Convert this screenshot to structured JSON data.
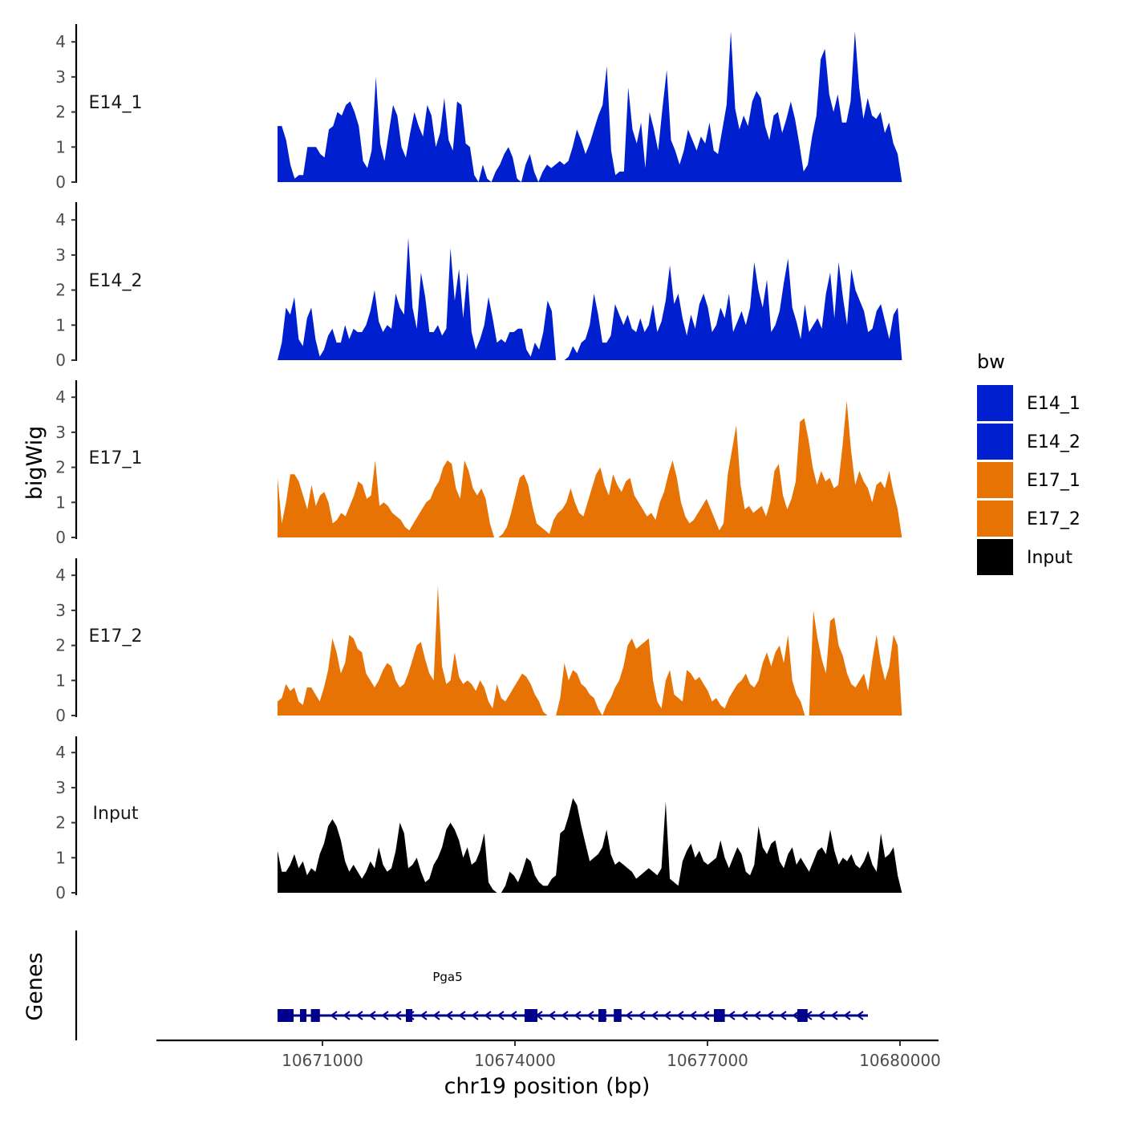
{
  "chart_data": {
    "type": "area",
    "ylabel": "bigWig",
    "xlabel": "chr19 position (bp)",
    "genes_label": "Genes",
    "x_range": [
      10668500,
      10680300
    ],
    "x_ticks": [
      10671000,
      10674000,
      10677000,
      10680000
    ],
    "x_tick_labels": [
      "10671000",
      "10674000",
      "10677000",
      "10680000"
    ],
    "y_range": [
      0,
      4.4
    ],
    "y_ticks": [
      0,
      1,
      2,
      3,
      4
    ],
    "y_tick_labels": [
      "0",
      "1",
      "2",
      "3",
      "4"
    ],
    "legend": {
      "title": "bw",
      "items": [
        {
          "label": "E14_1",
          "color": "#0020d0"
        },
        {
          "label": "E14_2",
          "color": "#0020d0"
        },
        {
          "label": "E17_1",
          "color": "#e87305"
        },
        {
          "label": "E17_2",
          "color": "#e87305"
        },
        {
          "label": "Input",
          "color": "#000000"
        }
      ]
    },
    "series": [
      {
        "name": "E14_1",
        "color": "#0020d0",
        "x_start": 10670300,
        "x_end": 10680030,
        "values": [
          1.6,
          1.6,
          1.2,
          0.5,
          0.1,
          0.2,
          0.2,
          1.0,
          1.0,
          1.0,
          0.8,
          0.7,
          1.5,
          1.6,
          2.0,
          1.9,
          2.2,
          2.3,
          2.0,
          1.6,
          0.6,
          0.4,
          0.9,
          3.0,
          1.1,
          0.6,
          1.4,
          2.2,
          1.9,
          1.0,
          0.7,
          1.4,
          2.0,
          1.6,
          1.3,
          2.2,
          1.9,
          1.0,
          1.4,
          2.4,
          1.2,
          0.9,
          2.3,
          2.2,
          1.1,
          1.0,
          0.2,
          0.0,
          0.5,
          0.1,
          0.0,
          0.3,
          0.5,
          0.8,
          1.0,
          0.7,
          0.1,
          0.0,
          0.5,
          0.8,
          0.3,
          0.0,
          0.3,
          0.5,
          0.4,
          0.5,
          0.6,
          0.5,
          0.6,
          1.0,
          1.5,
          1.2,
          0.8,
          1.1,
          1.5,
          1.9,
          2.2,
          3.3,
          0.9,
          0.2,
          0.3,
          0.3,
          2.7,
          1.5,
          1.1,
          1.7,
          0.4,
          2.0,
          1.5,
          0.9,
          2.1,
          3.2,
          1.2,
          0.9,
          0.5,
          0.9,
          1.5,
          1.2,
          0.9,
          1.3,
          1.1,
          1.7,
          0.9,
          0.8,
          1.5,
          2.2,
          4.3,
          2.1,
          1.5,
          1.9,
          1.6,
          2.3,
          2.6,
          2.4,
          1.6,
          1.2,
          1.9,
          2.0,
          1.4,
          1.8,
          2.3,
          1.8,
          1.1,
          0.3,
          0.5,
          1.3,
          1.9,
          3.5,
          3.8,
          2.5,
          2.0,
          2.5,
          1.7,
          1.7,
          2.3,
          4.3,
          2.7,
          1.8,
          2.4,
          1.9,
          1.8,
          2.0,
          1.4,
          1.7,
          1.1,
          0.8,
          0.0
        ]
      },
      {
        "name": "E14_2",
        "color": "#0020d0",
        "x_start": 10670300,
        "x_end": 10680030,
        "values": [
          0.0,
          0.5,
          1.5,
          1.3,
          1.8,
          0.6,
          0.4,
          1.2,
          1.5,
          0.6,
          0.1,
          0.3,
          0.7,
          0.9,
          0.5,
          0.5,
          1.0,
          0.6,
          0.9,
          0.8,
          0.8,
          1.0,
          1.4,
          2.0,
          1.1,
          0.8,
          1.0,
          0.9,
          1.9,
          1.5,
          1.3,
          3.5,
          1.5,
          0.9,
          2.5,
          1.8,
          0.8,
          0.8,
          1.0,
          0.7,
          0.9,
          3.2,
          1.7,
          2.6,
          1.2,
          2.5,
          0.8,
          0.3,
          0.6,
          1.0,
          1.8,
          1.2,
          0.5,
          0.6,
          0.5,
          0.8,
          0.8,
          0.9,
          0.9,
          0.3,
          0.1,
          0.5,
          0.3,
          0.8,
          1.7,
          1.4,
          0.0,
          0.0,
          0.0,
          0.1,
          0.4,
          0.2,
          0.5,
          0.6,
          1.0,
          1.9,
          1.3,
          0.5,
          0.5,
          0.7,
          1.6,
          1.3,
          1.0,
          1.3,
          0.9,
          0.8,
          1.2,
          0.8,
          1.0,
          1.6,
          0.8,
          1.1,
          1.7,
          2.7,
          1.6,
          1.9,
          1.2,
          0.7,
          1.3,
          0.9,
          1.6,
          1.9,
          1.5,
          0.8,
          1.0,
          1.5,
          1.2,
          1.9,
          0.8,
          1.1,
          1.4,
          1.0,
          1.5,
          2.8,
          2.0,
          1.5,
          2.3,
          0.8,
          1.0,
          1.4,
          2.2,
          2.9,
          1.5,
          1.1,
          0.6,
          1.6,
          0.8,
          1.0,
          1.2,
          0.9,
          1.9,
          2.5,
          1.2,
          2.8,
          1.8,
          1.0,
          2.6,
          2.0,
          1.7,
          1.4,
          0.8,
          0.9,
          1.4,
          1.6,
          1.1,
          0.6,
          1.3,
          1.5,
          0.0
        ]
      },
      {
        "name": "E17_1",
        "color": "#e87305",
        "x_start": 10670300,
        "x_end": 10680030,
        "values": [
          1.7,
          0.4,
          1.0,
          1.8,
          1.8,
          1.6,
          1.2,
          0.8,
          1.5,
          0.9,
          1.2,
          1.3,
          1.0,
          0.4,
          0.5,
          0.7,
          0.6,
          0.9,
          1.2,
          1.6,
          1.5,
          1.1,
          1.2,
          2.2,
          0.9,
          1.0,
          0.9,
          0.7,
          0.6,
          0.5,
          0.3,
          0.2,
          0.4,
          0.6,
          0.8,
          1.0,
          1.1,
          1.4,
          1.6,
          2.0,
          2.2,
          2.1,
          1.4,
          1.1,
          2.2,
          1.9,
          1.4,
          1.2,
          1.4,
          1.1,
          0.4,
          0.0,
          0.0,
          0.1,
          0.3,
          0.7,
          1.2,
          1.7,
          1.8,
          1.5,
          0.9,
          0.4,
          0.3,
          0.2,
          0.1,
          0.5,
          0.7,
          0.8,
          1.0,
          1.4,
          1.0,
          0.7,
          0.6,
          1.0,
          1.4,
          1.8,
          2.0,
          1.5,
          1.2,
          1.8,
          1.5,
          1.3,
          1.6,
          1.7,
          1.2,
          1.0,
          0.8,
          0.6,
          0.7,
          0.5,
          1.0,
          1.3,
          1.8,
          2.2,
          1.7,
          1.0,
          0.6,
          0.4,
          0.5,
          0.7,
          0.9,
          1.1,
          0.8,
          0.5,
          0.2,
          0.4,
          1.8,
          2.5,
          3.2,
          1.5,
          0.8,
          0.9,
          0.7,
          0.8,
          0.9,
          0.6,
          1.0,
          1.9,
          2.1,
          1.2,
          0.8,
          1.1,
          1.6,
          3.3,
          3.4,
          2.8,
          2.0,
          1.5,
          1.9,
          1.6,
          1.7,
          1.4,
          1.5,
          2.6,
          3.9,
          2.5,
          1.5,
          1.9,
          1.6,
          1.4,
          1.0,
          1.5,
          1.6,
          1.4,
          1.9,
          1.3,
          0.8,
          0.0
        ]
      },
      {
        "name": "E17_2",
        "color": "#e87305",
        "x_start": 10670300,
        "x_end": 10680030,
        "values": [
          0.4,
          0.5,
          0.9,
          0.7,
          0.8,
          0.4,
          0.3,
          0.8,
          0.8,
          0.6,
          0.4,
          0.8,
          1.3,
          2.2,
          1.8,
          1.2,
          1.5,
          2.3,
          2.2,
          1.9,
          1.8,
          1.2,
          1.0,
          0.8,
          1.0,
          1.3,
          1.5,
          1.4,
          1.0,
          0.8,
          0.9,
          1.2,
          1.6,
          2.0,
          2.1,
          1.6,
          1.2,
          1.0,
          3.7,
          1.4,
          0.9,
          1.0,
          1.8,
          1.1,
          0.9,
          1.0,
          0.9,
          0.7,
          1.0,
          0.8,
          0.4,
          0.2,
          0.9,
          0.5,
          0.4,
          0.6,
          0.8,
          1.0,
          1.2,
          1.1,
          0.9,
          0.6,
          0.4,
          0.1,
          0.0,
          0.0,
          0.0,
          0.5,
          1.5,
          1.0,
          1.3,
          1.2,
          0.9,
          0.8,
          0.6,
          0.5,
          0.2,
          0.0,
          0.3,
          0.5,
          0.8,
          1.0,
          1.4,
          2.0,
          2.2,
          1.9,
          2.0,
          2.1,
          2.2,
          1.0,
          0.4,
          0.2,
          1.0,
          1.3,
          0.6,
          0.5,
          0.4,
          1.3,
          1.2,
          1.0,
          1.1,
          0.9,
          0.7,
          0.4,
          0.5,
          0.3,
          0.2,
          0.5,
          0.7,
          0.9,
          1.0,
          1.2,
          0.9,
          0.8,
          1.0,
          1.5,
          1.8,
          1.4,
          1.8,
          2.0,
          1.5,
          2.3,
          1.0,
          0.6,
          0.4,
          0.0,
          0.0,
          3.0,
          2.2,
          1.6,
          1.2,
          2.7,
          2.8,
          2.0,
          1.7,
          1.2,
          0.9,
          0.8,
          1.0,
          1.2,
          0.7,
          1.6,
          2.3,
          1.5,
          1.0,
          1.4,
          2.3,
          2.0,
          0.0
        ]
      },
      {
        "name": "Input",
        "color": "#000000",
        "x_start": 10670300,
        "x_end": 10680030,
        "values": [
          1.2,
          0.6,
          0.6,
          0.8,
          1.1,
          0.7,
          0.9,
          0.5,
          0.7,
          0.6,
          1.1,
          1.4,
          1.9,
          2.1,
          1.9,
          1.5,
          0.9,
          0.6,
          0.8,
          0.6,
          0.4,
          0.6,
          0.9,
          0.7,
          1.3,
          0.8,
          0.6,
          0.7,
          1.2,
          2.0,
          1.7,
          0.7,
          0.8,
          1.0,
          0.6,
          0.3,
          0.4,
          0.8,
          1.0,
          1.3,
          1.8,
          2.0,
          1.8,
          1.5,
          1.0,
          1.3,
          0.8,
          0.9,
          1.2,
          1.7,
          0.3,
          0.1,
          0.0,
          0.0,
          0.2,
          0.6,
          0.5,
          0.3,
          0.6,
          1.0,
          0.9,
          0.5,
          0.3,
          0.2,
          0.2,
          0.4,
          0.5,
          1.7,
          1.8,
          2.2,
          2.7,
          2.5,
          1.9,
          1.4,
          0.9,
          1.0,
          1.1,
          1.3,
          1.8,
          1.1,
          0.8,
          0.9,
          0.8,
          0.7,
          0.6,
          0.4,
          0.5,
          0.6,
          0.7,
          0.6,
          0.5,
          0.7,
          2.6,
          0.4,
          0.3,
          0.2,
          0.9,
          1.2,
          1.4,
          1.0,
          1.2,
          0.9,
          0.8,
          0.9,
          1.0,
          1.5,
          1.0,
          0.7,
          1.0,
          1.3,
          1.1,
          0.6,
          0.5,
          0.8,
          1.9,
          1.3,
          1.1,
          1.4,
          1.5,
          0.9,
          0.7,
          1.1,
          1.3,
          0.8,
          1.0,
          0.8,
          0.6,
          0.9,
          1.2,
          1.3,
          1.1,
          1.8,
          1.2,
          0.8,
          1.0,
          0.9,
          1.1,
          0.8,
          0.7,
          0.9,
          1.2,
          0.8,
          0.6,
          1.7,
          1.0,
          1.1,
          1.3,
          0.5,
          0.0
        ]
      }
    ],
    "gene": {
      "name": "Pga5",
      "strand": "-",
      "start": 10670300,
      "end": 10679500,
      "exons": [
        [
          10670300,
          10670550
        ],
        [
          10670650,
          10670740
        ],
        [
          10670820,
          10670960
        ],
        [
          10672300,
          10672400
        ],
        [
          10674150,
          10674350
        ],
        [
          10675300,
          10675420
        ],
        [
          10675540,
          10675660
        ],
        [
          10677100,
          10677270
        ],
        [
          10678400,
          10678560
        ]
      ]
    }
  }
}
